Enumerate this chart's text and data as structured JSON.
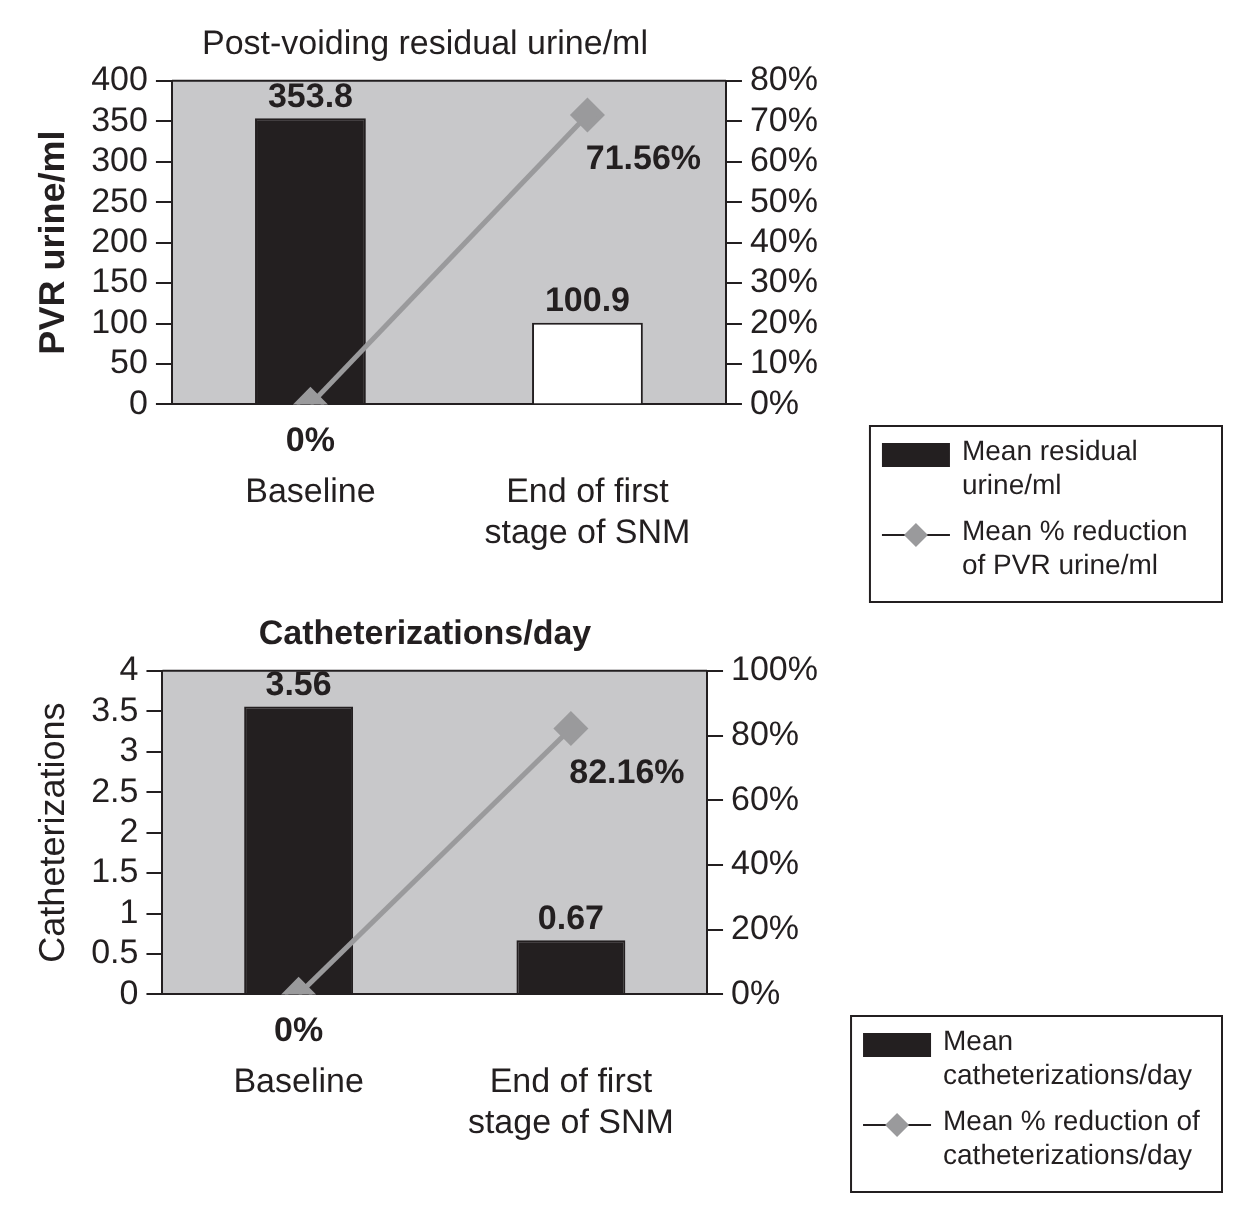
{
  "chart_data": [
    {
      "type": "bar",
      "title": "Post-voiding residual urine/ml",
      "ylabel": "PVR urine/ml",
      "categories": [
        "Baseline",
        "End of first stage of SNM"
      ],
      "series": [
        {
          "name": "Mean residual urine/ml",
          "colors": [
            "#231f20",
            "#ffffff"
          ],
          "values": [
            353.8,
            100.9
          ]
        },
        {
          "name": "Mean % reduction of PVR urine/ml",
          "type": "line",
          "axis": "y2",
          "color": "#9a9a9c",
          "values": [
            0,
            71.56
          ],
          "value_labels": [
            "0%",
            "71.56%"
          ]
        }
      ],
      "ylim": [
        0,
        400
      ],
      "yticks": [
        0,
        50,
        100,
        150,
        200,
        250,
        300,
        350,
        400
      ],
      "y2lim": [
        0,
        80
      ],
      "y2ticks": [
        {
          "value": 0,
          "label": "0%"
        },
        {
          "value": 10,
          "label": "10%"
        },
        {
          "value": 20,
          "label": "20%"
        },
        {
          "value": 30,
          "label": "30%"
        },
        {
          "value": 40,
          "label": "40%"
        },
        {
          "value": 50,
          "label": "50%"
        },
        {
          "value": 60,
          "label": "60%"
        },
        {
          "value": 70,
          "label": "70%"
        },
        {
          "value": 80,
          "label": "80%"
        }
      ],
      "data_labels": true,
      "legend": "bottom right",
      "marker": "diamond",
      "line_style": "solid",
      "grid": false
    },
    {
      "type": "bar",
      "title": "Catheterizations/day",
      "ylabel": "Catheterizations",
      "categories": [
        "Baseline",
        "End of first stage of SNM"
      ],
      "series": [
        {
          "name": "Mean catheterizations/day",
          "colors": [
            "#231f20",
            "#231f20"
          ],
          "values": [
            3.56,
            0.67
          ]
        },
        {
          "name": "Mean % reduction of catheterizations/day",
          "type": "line",
          "axis": "y2",
          "color": "#9a9a9c",
          "values": [
            0,
            82.16
          ],
          "value_labels": [
            "0%",
            "82.16%"
          ]
        }
      ],
      "ylim": [
        0,
        4
      ],
      "yticks": [
        0,
        0.5,
        1,
        1.5,
        2,
        2.5,
        3,
        3.5,
        4
      ],
      "y2lim": [
        0,
        100
      ],
      "y2ticks": [
        {
          "value": 0,
          "label": "0%"
        },
        {
          "value": 20,
          "label": "20%"
        },
        {
          "value": 40,
          "label": "40%"
        },
        {
          "value": 60,
          "label": "60%"
        },
        {
          "value": 80,
          "label": "80%"
        },
        {
          "value": 100,
          "label": "100%"
        }
      ],
      "data_labels": true,
      "legend": "bottom right",
      "marker": "diamond",
      "line_style": "solid",
      "grid": false
    }
  ]
}
